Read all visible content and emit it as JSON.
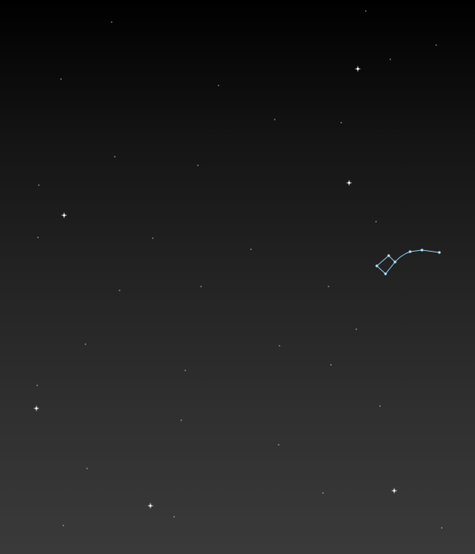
{
  "scene": {
    "subject": "night-sky",
    "background_top_color": "#000000",
    "background_bottom_color": "#3a3a3a",
    "star_color": "#ffffff",
    "constellation_color": "#8fd0ee",
    "constellation_node_color": "#bfe8ff",
    "bright_star_count": 7,
    "constellation_star_count": 7
  }
}
